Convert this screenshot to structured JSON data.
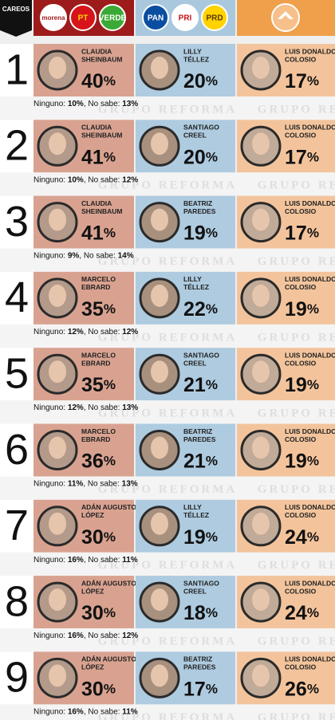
{
  "header": {
    "tag": "CAREOS",
    "parties": [
      [
        "morena",
        "PT",
        "VERDE"
      ],
      [
        "PAN",
        "PRI",
        "PRD"
      ]
    ]
  },
  "watermark": "GRUPO REFORMA",
  "rows": [
    {
      "number": "1",
      "candidates": [
        {
          "name": [
            "CLAUDIA",
            "SHEINBAUM"
          ],
          "pct": "40%"
        },
        {
          "name": [
            "LILLY",
            "TÉLLEZ"
          ],
          "pct": "20%"
        },
        {
          "name": [
            "LUIS DONALDO",
            "COLOSIO"
          ],
          "pct": "17%"
        }
      ],
      "footer": [
        "Ninguno: ",
        "10%",
        ", No sabe: ",
        "13%"
      ]
    },
    {
      "number": "2",
      "candidates": [
        {
          "name": [
            "CLAUDIA",
            "SHEINBAUM"
          ],
          "pct": "41%"
        },
        {
          "name": [
            "SANTIAGO",
            "CREEL"
          ],
          "pct": "20%"
        },
        {
          "name": [
            "LUIS DONALDO",
            "COLOSIO"
          ],
          "pct": "17%"
        }
      ],
      "footer": [
        "Ninguno: ",
        "10%",
        ", No sabe: ",
        "12%"
      ]
    },
    {
      "number": "3",
      "candidates": [
        {
          "name": [
            "CLAUDIA",
            "SHEINBAUM"
          ],
          "pct": "41%"
        },
        {
          "name": [
            "BEATRIZ",
            "PAREDES"
          ],
          "pct": "19%"
        },
        {
          "name": [
            "LUIS DONALDO",
            "COLOSIO"
          ],
          "pct": "17%"
        }
      ],
      "footer": [
        "Ninguno: ",
        "9%",
        ", No sabe: ",
        "14%"
      ]
    },
    {
      "number": "4",
      "candidates": [
        {
          "name": [
            "MARCELO",
            "EBRARD"
          ],
          "pct": "35%"
        },
        {
          "name": [
            "LILLY",
            "TÉLLEZ"
          ],
          "pct": "22%"
        },
        {
          "name": [
            "LUIS DONALDO",
            "COLOSIO"
          ],
          "pct": "19%"
        }
      ],
      "footer": [
        "Ninguno: ",
        "12%",
        ", No sabe: ",
        "12%"
      ]
    },
    {
      "number": "5",
      "candidates": [
        {
          "name": [
            "MARCELO",
            "EBRARD"
          ],
          "pct": "35%"
        },
        {
          "name": [
            "SANTIAGO",
            "CREEL"
          ],
          "pct": "21%"
        },
        {
          "name": [
            "LUIS DONALDO",
            "COLOSIO"
          ],
          "pct": "19%"
        }
      ],
      "footer": [
        "Ninguno: ",
        "12%",
        ", No sabe: ",
        "13%"
      ]
    },
    {
      "number": "6",
      "candidates": [
        {
          "name": [
            "MARCELO",
            "EBRARD"
          ],
          "pct": "36%"
        },
        {
          "name": [
            "BEATRIZ",
            "PAREDES"
          ],
          "pct": "21%"
        },
        {
          "name": [
            "LUIS DONALDO",
            "COLOSIO"
          ],
          "pct": "19%"
        }
      ],
      "footer": [
        "Ninguno: ",
        "11%",
        ", No sabe: ",
        "13%"
      ]
    },
    {
      "number": "7",
      "candidates": [
        {
          "name": [
            "ADÁN AUGUSTO",
            "LÓPEZ"
          ],
          "pct": "30%"
        },
        {
          "name": [
            "LILLY",
            "TÉLLEZ"
          ],
          "pct": "19%"
        },
        {
          "name": [
            "LUIS DONALDO",
            "COLOSIO"
          ],
          "pct": "24%"
        }
      ],
      "footer": [
        "Ninguno: ",
        "16%",
        ", No sabe: ",
        "11%"
      ]
    },
    {
      "number": "8",
      "candidates": [
        {
          "name": [
            "ADÁN AUGUSTO",
            "LÓPEZ"
          ],
          "pct": "30%"
        },
        {
          "name": [
            "SANTIAGO",
            "CREEL"
          ],
          "pct": "18%"
        },
        {
          "name": [
            "LUIS DONALDO",
            "COLOSIO"
          ],
          "pct": "24%"
        }
      ],
      "footer": [
        "Ninguno: ",
        "16%",
        ", No sabe: ",
        "12%"
      ]
    },
    {
      "number": "9",
      "candidates": [
        {
          "name": [
            "ADÁN AUGUSTO",
            "LÓPEZ"
          ],
          "pct": "30%"
        },
        {
          "name": [
            "BEATRIZ",
            "PAREDES"
          ],
          "pct": "17%"
        },
        {
          "name": [
            "LUIS DONALDO",
            "COLOSIO"
          ],
          "pct": "26%"
        }
      ],
      "footer": [
        "Ninguno: ",
        "16%",
        ", No sabe: ",
        "11%"
      ]
    }
  ]
}
